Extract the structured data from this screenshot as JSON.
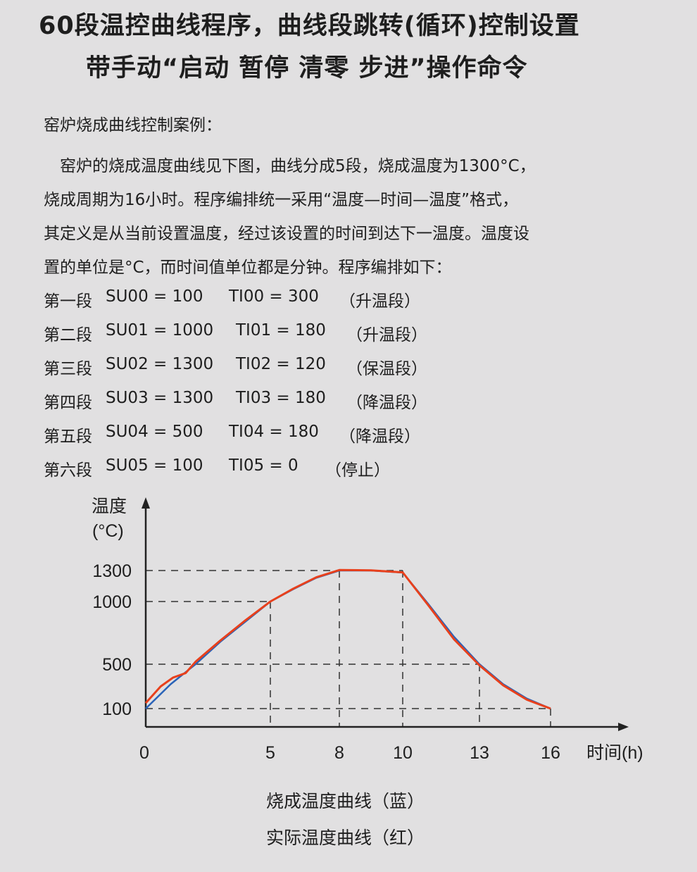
{
  "header": {
    "title1": "60段温控曲线程序，曲线段跳转(循环)控制设置",
    "title2": "带手动“启动  暂停  清零  步进”操作命令"
  },
  "body": {
    "heading": "窑炉烧成曲线控制案例：",
    "paragraph": [
      "　窑炉的烧成温度曲线见下图，曲线分成5段，烧成温度为1300°C，",
      "烧成周期为16小时。程序编排统一采用“温度—时间—温度”格式，",
      "其定义是从当前设置温度，经过该设置的时间到达下一温度。温度设",
      "置的单位是°C，而时间值单位都是分钟。程序编排如下："
    ],
    "segments": [
      {
        "name": "第一段",
        "su": "SU00 = 100",
        "ti": "TI00 = 300",
        "note": "（升温段）"
      },
      {
        "name": "第二段",
        "su": "SU01 = 1000",
        "ti": "TI01 = 180",
        "note": "（升温段）"
      },
      {
        "name": "第三段",
        "su": "SU02 = 1300",
        "ti": "TI02 = 120",
        "note": "（保温段）"
      },
      {
        "name": "第四段",
        "su": "SU03 = 1300",
        "ti": "TI03 = 180",
        "note": "（降温段）"
      },
      {
        "name": "第五段",
        "su": "SU04 = 500",
        "ti": "TI04 = 180",
        "note": "（降温段）"
      },
      {
        "name": "第六段",
        "su": "SU05 = 100",
        "ti": "TI05 = 0",
        "note": "（停止）"
      }
    ]
  },
  "chart_data": {
    "type": "line",
    "ylabel": "温度",
    "yunit": "(°C)",
    "xlabel": "时间(h)",
    "xticks": [
      "0",
      "5",
      "8",
      "10",
      "13",
      "16"
    ],
    "yticks": [
      "100",
      "500",
      "1000",
      "1300"
    ],
    "grid": "dashed reference lines at ticks",
    "series": [
      {
        "name": "烧成温度曲线（蓝）",
        "color": "#2a63b8",
        "x": [
          0,
          1,
          2,
          3,
          4,
          5,
          6,
          7,
          8,
          9,
          10,
          11,
          12,
          13,
          14,
          15,
          16
        ],
        "y": [
          100,
          320,
          500,
          680,
          840,
          1000,
          1120,
          1230,
          1300,
          1300,
          1280,
          980,
          720,
          500,
          320,
          190,
          100
        ]
      },
      {
        "name": "实际温度曲线（红）",
        "color": "#e8401c",
        "x": [
          0,
          0.6,
          1.1,
          1.6,
          2,
          3,
          4,
          5,
          6,
          7,
          8,
          9,
          10,
          11,
          12,
          13,
          14,
          15,
          16
        ],
        "y": [
          150,
          300,
          380,
          420,
          520,
          690,
          850,
          1000,
          1125,
          1235,
          1305,
          1302,
          1282,
          970,
          700,
          490,
          310,
          180,
          100
        ]
      }
    ]
  }
}
